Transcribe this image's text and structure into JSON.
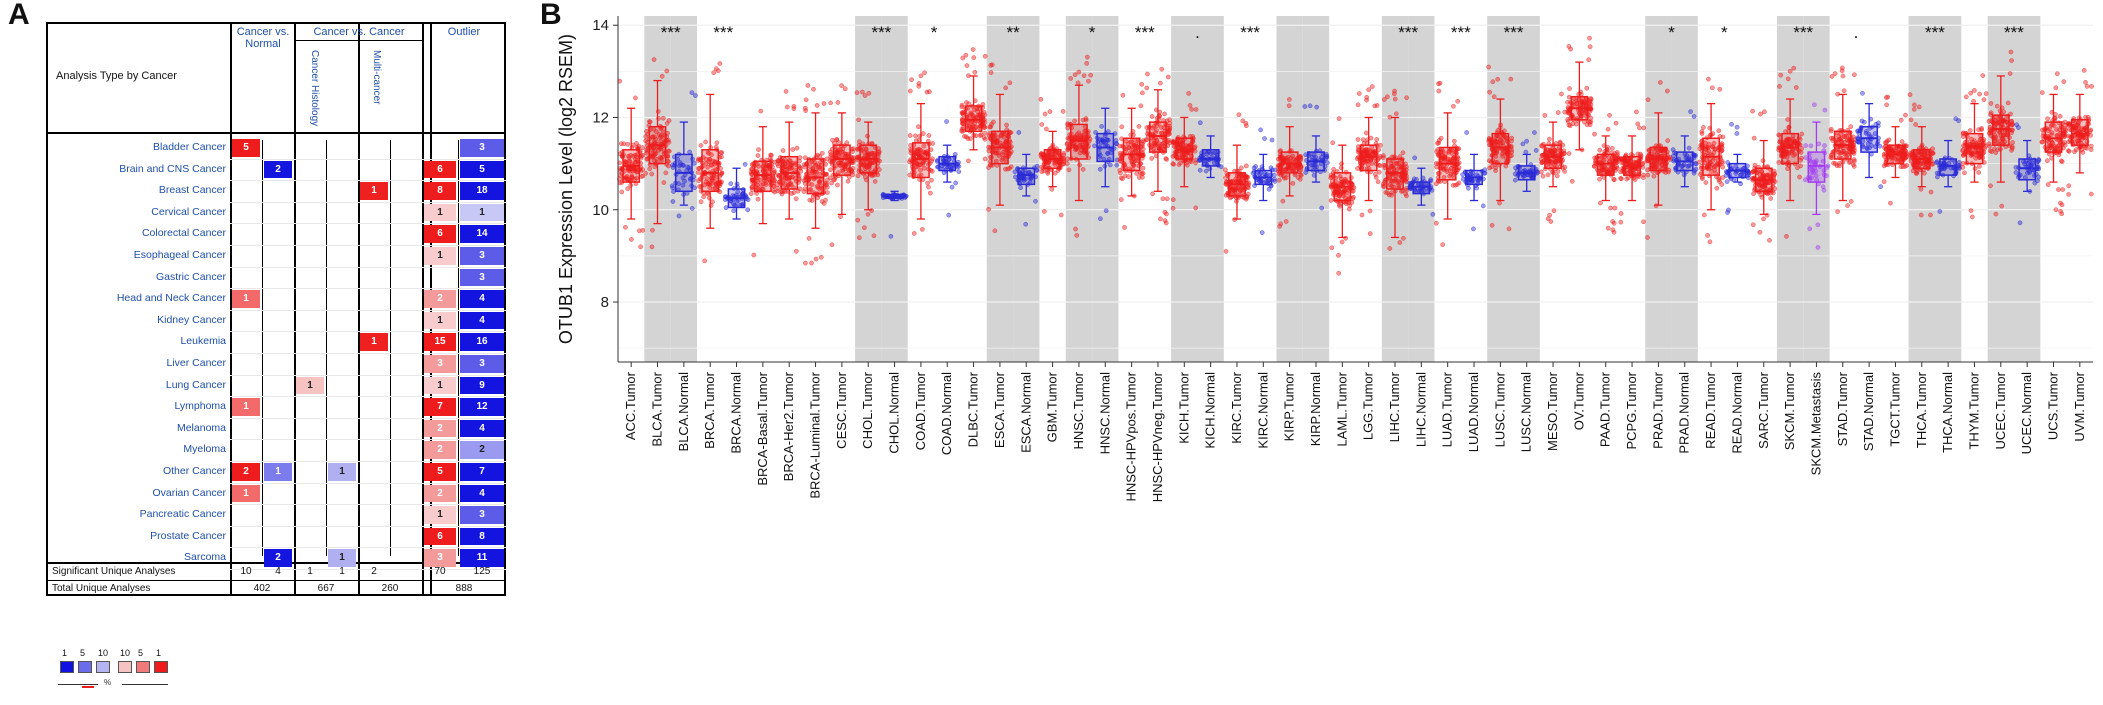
{
  "panel_labels": {
    "a": "A",
    "b": "B"
  },
  "panel_a": {
    "header": {
      "analysis_type": "Analysis Type by Cancer",
      "cancer_vs_normal": "Cancer vs. Normal",
      "cancer_vs_cancer": "Cancer vs. Cancer",
      "cancer_histology": "Cancer Histology",
      "multi_cancer": "Multi-cancer",
      "outlier": "Outlier"
    },
    "rows": [
      {
        "name": "Bladder Cancer",
        "cn_up": "5",
        "cn_down": "",
        "hist_up": "",
        "hist_down": "",
        "multi_up": "",
        "out_up": "",
        "out_down": "3"
      },
      {
        "name": "Brain and CNS Cancer",
        "cn_up": "",
        "cn_down": "2",
        "hist_up": "",
        "hist_down": "",
        "multi_up": "",
        "out_up": "6",
        "out_down": "5"
      },
      {
        "name": "Breast Cancer",
        "cn_up": "",
        "cn_down": "",
        "hist_up": "",
        "hist_down": "",
        "multi_up": "1",
        "out_up": "8",
        "out_down": "18"
      },
      {
        "name": "Cervical Cancer",
        "cn_up": "",
        "cn_down": "",
        "hist_up": "",
        "hist_down": "",
        "multi_up": "",
        "out_up": "1",
        "out_down": "1"
      },
      {
        "name": "Colorectal Cancer",
        "cn_up": "",
        "cn_down": "",
        "hist_up": "",
        "hist_down": "",
        "multi_up": "",
        "out_up": "6",
        "out_down": "14"
      },
      {
        "name": "Esophageal Cancer",
        "cn_up": "",
        "cn_down": "",
        "hist_up": "",
        "hist_down": "",
        "multi_up": "",
        "out_up": "1",
        "out_down": "3"
      },
      {
        "name": "Gastric Cancer",
        "cn_up": "",
        "cn_down": "",
        "hist_up": "",
        "hist_down": "",
        "multi_up": "",
        "out_up": "",
        "out_down": "3"
      },
      {
        "name": "Head and Neck Cancer",
        "cn_up": "1",
        "cn_down": "",
        "hist_up": "",
        "hist_down": "",
        "multi_up": "",
        "out_up": "2",
        "out_down": "4"
      },
      {
        "name": "Kidney Cancer",
        "cn_up": "",
        "cn_down": "",
        "hist_up": "",
        "hist_down": "",
        "multi_up": "",
        "out_up": "1",
        "out_down": "4"
      },
      {
        "name": "Leukemia",
        "cn_up": "",
        "cn_down": "",
        "hist_up": "",
        "hist_down": "",
        "multi_up": "1",
        "out_up": "15",
        "out_down": "16"
      },
      {
        "name": "Liver Cancer",
        "cn_up": "",
        "cn_down": "",
        "hist_up": "",
        "hist_down": "",
        "multi_up": "",
        "out_up": "3",
        "out_down": "3"
      },
      {
        "name": "Lung Cancer",
        "cn_up": "",
        "cn_down": "",
        "hist_up": "1",
        "hist_down": "",
        "multi_up": "",
        "out_up": "1",
        "out_down": "9"
      },
      {
        "name": "Lymphoma",
        "cn_up": "1",
        "cn_down": "",
        "hist_up": "",
        "hist_down": "",
        "multi_up": "",
        "out_up": "7",
        "out_down": "12"
      },
      {
        "name": "Melanoma",
        "cn_up": "",
        "cn_down": "",
        "hist_up": "",
        "hist_down": "",
        "multi_up": "",
        "out_up": "2",
        "out_down": "4"
      },
      {
        "name": "Myeloma",
        "cn_up": "",
        "cn_down": "",
        "hist_up": "",
        "hist_down": "",
        "multi_up": "",
        "out_up": "2",
        "out_down": "2"
      },
      {
        "name": "Other Cancer",
        "cn_up": "2",
        "cn_down": "1",
        "hist_up": "",
        "hist_down": "1",
        "multi_up": "",
        "out_up": "5",
        "out_down": "7"
      },
      {
        "name": "Ovarian Cancer",
        "cn_up": "1",
        "cn_down": "",
        "hist_up": "",
        "hist_down": "",
        "multi_up": "",
        "out_up": "2",
        "out_down": "4"
      },
      {
        "name": "Pancreatic Cancer",
        "cn_up": "",
        "cn_down": "",
        "hist_up": "",
        "hist_down": "",
        "multi_up": "",
        "out_up": "1",
        "out_down": "3"
      },
      {
        "name": "Prostate Cancer",
        "cn_up": "",
        "cn_down": "",
        "hist_up": "",
        "hist_down": "",
        "multi_up": "",
        "out_up": "6",
        "out_down": "8"
      },
      {
        "name": "Sarcoma",
        "cn_up": "",
        "cn_down": "2",
        "hist_up": "",
        "hist_down": "1",
        "multi_up": "",
        "out_up": "3",
        "out_down": "11"
      }
    ],
    "significant": {
      "label": "Significant Unique Analyses",
      "cn_up": "10",
      "cn_down": "4",
      "hist_up": "1",
      "hist_down": "1",
      "multi_up": "2",
      "out_up": "70",
      "out_down": "125"
    },
    "total": {
      "label": "Total Unique Analyses",
      "cn": "402",
      "cc": "667",
      "multi": "260",
      "out": "888"
    },
    "legend": {
      "labels": [
        "1",
        "5",
        "10",
        "10",
        "5",
        "1"
      ],
      "unit": "%"
    }
  },
  "chart_data": {
    "type": "box",
    "ylabel": "OTUB1 Expression Level (log2 RSEM)",
    "ylim": [
      6.7,
      14.2
    ],
    "yticks": [
      8,
      10,
      12,
      14
    ],
    "colors": {
      "tumor": "#ee1c1c",
      "normal": "#2a2ad6",
      "metastasis": "#a23cf0"
    },
    "groups": [
      {
        "label": "ACC.Tumor",
        "kind": "tumor",
        "stats": [
          9.8,
          10.6,
          10.95,
          11.3,
          12.2
        ],
        "sig": "",
        "shade": false
      },
      {
        "label": "BLCA.Tumor",
        "kind": "tumor",
        "stats": [
          9.7,
          11.0,
          11.4,
          11.8,
          12.8
        ],
        "sig": "***",
        "shade": true
      },
      {
        "label": "BLCA.Normal",
        "kind": "normal",
        "stats": [
          10.1,
          10.4,
          10.8,
          11.2,
          11.9
        ],
        "sig": "",
        "shade": true
      },
      {
        "label": "BRCA.Tumor",
        "kind": "tumor",
        "stats": [
          9.6,
          10.4,
          10.8,
          11.3,
          12.5
        ],
        "sig": "***",
        "shade": false
      },
      {
        "label": "BRCA.Normal",
        "kind": "normal",
        "stats": [
          9.8,
          10.05,
          10.25,
          10.45,
          10.9
        ],
        "sig": "",
        "shade": false
      },
      {
        "label": "BRCA-Basal.Tumor",
        "kind": "tumor",
        "stats": [
          9.7,
          10.4,
          10.75,
          11.05,
          11.8
        ],
        "sig": "",
        "shade": false
      },
      {
        "label": "BRCA-Her2.Tumor",
        "kind": "tumor",
        "stats": [
          9.8,
          10.45,
          10.8,
          11.15,
          11.9
        ],
        "sig": "",
        "shade": false
      },
      {
        "label": "BRCA-Luminal.Tumor",
        "kind": "tumor",
        "stats": [
          9.6,
          10.35,
          10.7,
          11.1,
          12.1
        ],
        "sig": "",
        "shade": false
      },
      {
        "label": "CESC.Tumor",
        "kind": "tumor",
        "stats": [
          9.9,
          10.75,
          11.1,
          11.4,
          12.1
        ],
        "sig": "",
        "shade": false
      },
      {
        "label": "CHOL.Tumor",
        "kind": "tumor",
        "stats": [
          10.0,
          10.8,
          11.1,
          11.4,
          11.9
        ],
        "sig": "***",
        "shade": true
      },
      {
        "label": "CHOL.Normal",
        "kind": "normal",
        "stats": [
          10.2,
          10.25,
          10.3,
          10.33,
          10.4
        ],
        "sig": "",
        "shade": true
      },
      {
        "label": "COAD.Tumor",
        "kind": "tumor",
        "stats": [
          9.8,
          10.7,
          11.1,
          11.45,
          12.3
        ],
        "sig": "*",
        "shade": false
      },
      {
        "label": "COAD.Normal",
        "kind": "normal",
        "stats": [
          10.6,
          10.85,
          11.0,
          11.15,
          11.4
        ],
        "sig": "",
        "shade": false
      },
      {
        "label": "DLBC.Tumor",
        "kind": "tumor",
        "stats": [
          11.3,
          11.7,
          11.95,
          12.25,
          12.9
        ],
        "sig": "",
        "shade": false
      },
      {
        "label": "ESCA.Tumor",
        "kind": "tumor",
        "stats": [
          10.1,
          11.0,
          11.35,
          11.7,
          12.5
        ],
        "sig": "**",
        "shade": true
      },
      {
        "label": "ESCA.Normal",
        "kind": "normal",
        "stats": [
          10.3,
          10.55,
          10.75,
          10.9,
          11.2
        ],
        "sig": "",
        "shade": true
      },
      {
        "label": "GBM.Tumor",
        "kind": "tumor",
        "stats": [
          10.5,
          10.9,
          11.1,
          11.3,
          11.7
        ],
        "sig": "",
        "shade": false
      },
      {
        "label": "HNSC.Tumor",
        "kind": "tumor",
        "stats": [
          10.2,
          11.1,
          11.5,
          11.85,
          12.7
        ],
        "sig": "*",
        "shade": true
      },
      {
        "label": "HNSC.Normal",
        "kind": "normal",
        "stats": [
          10.5,
          11.05,
          11.35,
          11.65,
          12.2
        ],
        "sig": "",
        "shade": true
      },
      {
        "label": "HNSC-HPVpos.Tumor",
        "kind": "tumor",
        "stats": [
          10.3,
          10.85,
          11.2,
          11.55,
          12.2
        ],
        "sig": "***",
        "shade": false
      },
      {
        "label": "HNSC-HPVneg.Tumor",
        "kind": "tumor",
        "stats": [
          10.4,
          11.25,
          11.6,
          11.9,
          12.6
        ],
        "sig": "",
        "shade": false
      },
      {
        "label": "KICH.Tumor",
        "kind": "tumor",
        "stats": [
          10.5,
          11.1,
          11.3,
          11.55,
          12.0
        ],
        "sig": ".",
        "shade": true
      },
      {
        "label": "KICH.Normal",
        "kind": "normal",
        "stats": [
          10.7,
          10.95,
          11.1,
          11.3,
          11.6
        ],
        "sig": "",
        "shade": true
      },
      {
        "label": "KIRC.Tumor",
        "kind": "tumor",
        "stats": [
          9.8,
          10.3,
          10.55,
          10.8,
          11.4
        ],
        "sig": "***",
        "shade": false
      },
      {
        "label": "KIRC.Normal",
        "kind": "normal",
        "stats": [
          10.2,
          10.55,
          10.7,
          10.85,
          11.2
        ],
        "sig": "",
        "shade": false
      },
      {
        "label": "KIRP.Tumor",
        "kind": "tumor",
        "stats": [
          10.3,
          10.8,
          11.0,
          11.25,
          11.8
        ],
        "sig": "",
        "shade": true
      },
      {
        "label": "KIRP.Normal",
        "kind": "normal",
        "stats": [
          10.6,
          10.85,
          11.05,
          11.25,
          11.6
        ],
        "sig": "",
        "shade": true
      },
      {
        "label": "LAML.Tumor",
        "kind": "tumor",
        "stats": [
          9.4,
          10.2,
          10.5,
          10.8,
          11.4
        ],
        "sig": "",
        "shade": false
      },
      {
        "label": "LGG.Tumor",
        "kind": "tumor",
        "stats": [
          10.2,
          10.85,
          11.15,
          11.4,
          12.0
        ],
        "sig": "",
        "shade": false
      },
      {
        "label": "LIHC.Tumor",
        "kind": "tumor",
        "stats": [
          9.4,
          10.45,
          10.8,
          11.1,
          12.0
        ],
        "sig": "***",
        "shade": true
      },
      {
        "label": "LIHC.Normal",
        "kind": "normal",
        "stats": [
          10.1,
          10.35,
          10.5,
          10.6,
          10.9
        ],
        "sig": "",
        "shade": true
      },
      {
        "label": "LUAD.Tumor",
        "kind": "tumor",
        "stats": [
          9.8,
          10.65,
          11.0,
          11.35,
          12.1
        ],
        "sig": "***",
        "shade": false
      },
      {
        "label": "LUAD.Normal",
        "kind": "normal",
        "stats": [
          10.2,
          10.55,
          10.7,
          10.85,
          11.2
        ],
        "sig": "",
        "shade": false
      },
      {
        "label": "LUSC.Tumor",
        "kind": "tumor",
        "stats": [
          10.2,
          11.0,
          11.35,
          11.65,
          12.4
        ],
        "sig": "***",
        "shade": true
      },
      {
        "label": "LUSC.Normal",
        "kind": "normal",
        "stats": [
          10.4,
          10.65,
          10.8,
          10.95,
          11.2
        ],
        "sig": "",
        "shade": true
      },
      {
        "label": "MESO.Tumor",
        "kind": "tumor",
        "stats": [
          10.5,
          10.9,
          11.15,
          11.4,
          11.9
        ],
        "sig": "",
        "shade": false
      },
      {
        "label": "OV.Tumor",
        "kind": "tumor",
        "stats": [
          11.3,
          11.95,
          12.2,
          12.45,
          13.2
        ],
        "sig": "",
        "shade": false
      },
      {
        "label": "PAAD.Tumor",
        "kind": "tumor",
        "stats": [
          10.2,
          10.75,
          11.0,
          11.2,
          11.6
        ],
        "sig": "",
        "shade": false
      },
      {
        "label": "PCPG.Tumor",
        "kind": "tumor",
        "stats": [
          10.2,
          10.75,
          10.95,
          11.15,
          11.6
        ],
        "sig": "",
        "shade": false
      },
      {
        "label": "PRAD.Tumor",
        "kind": "tumor",
        "stats": [
          10.1,
          10.85,
          11.1,
          11.35,
          12.1
        ],
        "sig": "*",
        "shade": true
      },
      {
        "label": "PRAD.Normal",
        "kind": "normal",
        "stats": [
          10.5,
          10.85,
          11.05,
          11.25,
          11.6
        ],
        "sig": "",
        "shade": true
      },
      {
        "label": "READ.Tumor",
        "kind": "tumor",
        "stats": [
          10.0,
          10.75,
          11.15,
          11.55,
          12.3
        ],
        "sig": "*",
        "shade": false
      },
      {
        "label": "READ.Normal",
        "kind": "normal",
        "stats": [
          10.6,
          10.7,
          10.85,
          11.0,
          11.2
        ],
        "sig": "",
        "shade": false
      },
      {
        "label": "SARC.Tumor",
        "kind": "tumor",
        "stats": [
          9.9,
          10.4,
          10.65,
          10.9,
          11.5
        ],
        "sig": "",
        "shade": false
      },
      {
        "label": "SKCM.Tumor",
        "kind": "tumor",
        "stats": [
          10.2,
          11.0,
          11.35,
          11.65,
          12.4
        ],
        "sig": "***",
        "shade": true
      },
      {
        "label": "SKCM.Metastasis",
        "kind": "metastasis",
        "stats": [
          9.9,
          10.6,
          10.95,
          11.25,
          11.9
        ],
        "sig": "",
        "shade": true
      },
      {
        "label": "STAD.Tumor",
        "kind": "tumor",
        "stats": [
          10.2,
          11.1,
          11.4,
          11.7,
          12.5
        ],
        "sig": ".",
        "shade": false
      },
      {
        "label": "STAD.Normal",
        "kind": "normal",
        "stats": [
          10.7,
          11.25,
          11.55,
          11.8,
          12.3
        ],
        "sig": "",
        "shade": false
      },
      {
        "label": "TGCT.Tumor",
        "kind": "tumor",
        "stats": [
          10.7,
          11.0,
          11.2,
          11.4,
          11.8
        ],
        "sig": "",
        "shade": false
      },
      {
        "label": "THCA.Tumor",
        "kind": "tumor",
        "stats": [
          10.5,
          10.9,
          11.1,
          11.3,
          11.8
        ],
        "sig": "***",
        "shade": true
      },
      {
        "label": "THCA.Normal",
        "kind": "normal",
        "stats": [
          10.5,
          10.75,
          10.95,
          11.1,
          11.5
        ],
        "sig": "",
        "shade": true
      },
      {
        "label": "THYM.Tumor",
        "kind": "tumor",
        "stats": [
          10.6,
          11.0,
          11.35,
          11.65,
          12.3
        ],
        "sig": "",
        "shade": false
      },
      {
        "label": "UCEC.Tumor",
        "kind": "tumor",
        "stats": [
          10.6,
          11.4,
          11.75,
          12.05,
          12.9
        ],
        "sig": "***",
        "shade": true
      },
      {
        "label": "UCEC.Normal",
        "kind": "normal",
        "stats": [
          10.4,
          10.65,
          10.9,
          11.1,
          11.5
        ],
        "sig": "",
        "shade": true
      },
      {
        "label": "UCS.Tumor",
        "kind": "tumor",
        "stats": [
          10.6,
          11.25,
          11.55,
          11.9,
          12.5
        ],
        "sig": "",
        "shade": false
      },
      {
        "label": "UVM.Tumor",
        "kind": "tumor",
        "stats": [
          10.8,
          11.4,
          11.65,
          11.95,
          12.5
        ],
        "sig": "",
        "shade": false
      }
    ]
  }
}
